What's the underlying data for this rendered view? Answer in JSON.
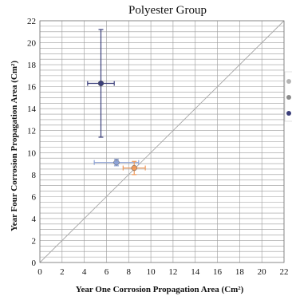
{
  "chart_data": {
    "type": "scatter",
    "title": "Polyester Group",
    "xlabel": "Year One Corrosion Propagation Area (Cm²)",
    "ylabel": "Year Four Corrosion Propagation Area (Cm²)",
    "xlim": [
      0,
      22
    ],
    "ylim": [
      0,
      22
    ],
    "x_ticks": [
      0,
      2,
      4,
      6,
      8,
      10,
      12,
      14,
      16,
      18,
      20,
      22
    ],
    "y_ticks": [
      0,
      2,
      4,
      6,
      8,
      10,
      12,
      14,
      16,
      18,
      20,
      22
    ],
    "grid": true,
    "minor_y_step": 0.5,
    "reference_line": {
      "type": "y=x",
      "from": [
        0,
        0
      ],
      "to": [
        22,
        22
      ]
    },
    "legend_placement": "right",
    "series": [
      {
        "color": "#8ea3d6",
        "x": 6.9,
        "y": 9.1,
        "x_err": 2.0,
        "y_err": 0.3
      },
      {
        "color": "#ef9a5c",
        "x": 8.5,
        "y": 8.6,
        "x_err": 1.0,
        "y_err": 0.6
      },
      {
        "color": "#3b3f7a",
        "x": 5.5,
        "y": 16.3,
        "x_err": 1.2,
        "y_err": 4.9
      }
    ],
    "legend_marker_colors": [
      "#b5b5b5",
      "#8c8c8c",
      "#3b3f7a"
    ]
  }
}
